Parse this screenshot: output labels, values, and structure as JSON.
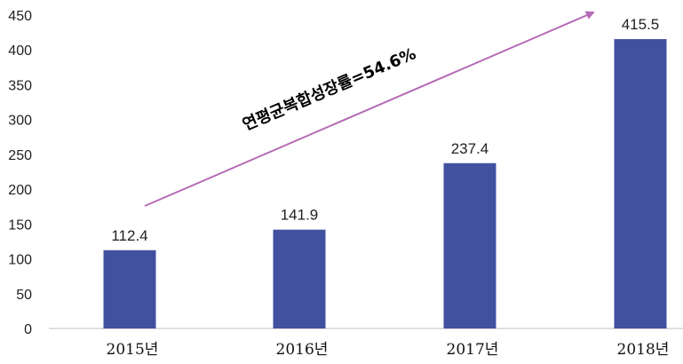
{
  "chart_data": {
    "type": "bar",
    "categories": [
      "2015년",
      "2016년",
      "2017년",
      "2018년"
    ],
    "values": [
      112.4,
      141.9,
      237.4,
      415.5
    ],
    "data_labels": [
      "112.4",
      "141.9",
      "237.4",
      "415.5"
    ],
    "title": "",
    "xlabel": "",
    "ylabel": "",
    "ylim": [
      0,
      450
    ],
    "yticks": [
      0,
      50,
      100,
      150,
      200,
      250,
      300,
      350,
      400,
      450
    ],
    "grid": false,
    "legend": null,
    "annotation": "연평균복합성장률=54.6%",
    "colors": {
      "bar": "#4250a0",
      "arrow": "#b56ab5",
      "axis": "#bfbfbf"
    }
  }
}
